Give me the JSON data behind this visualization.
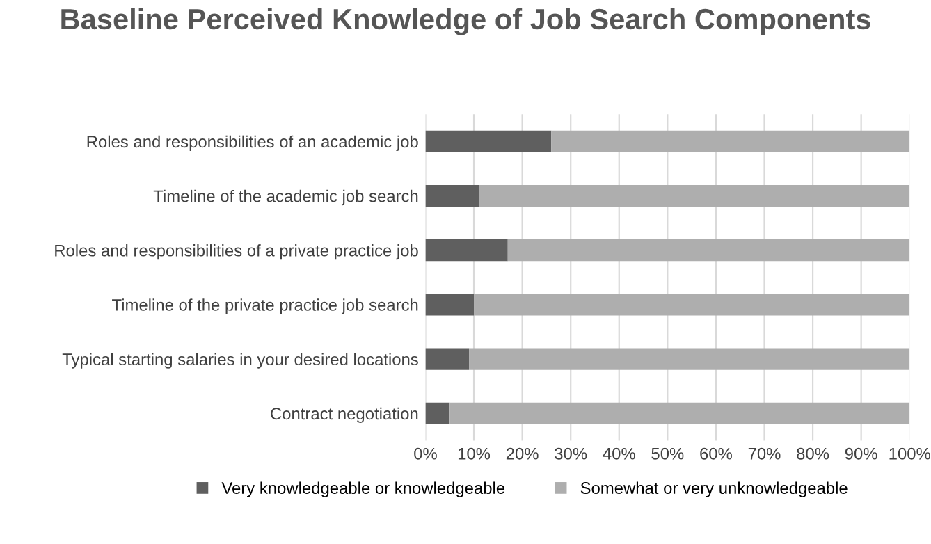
{
  "chart_data": {
    "type": "bar",
    "orientation": "horizontal",
    "stacked": true,
    "title": "Baseline Perceived Knowledge of Job Search Components",
    "categories": [
      "Roles and responsibilities of an academic job",
      "Timeline of the academic job search",
      "Roles and responsibilities of a private practice job",
      "Timeline of the private practice job search",
      "Typical starting salaries in your desired locations",
      "Contract negotiation"
    ],
    "series": [
      {
        "name": "Very knowledgeable or knowledgeable",
        "color": "#5f5f5f",
        "values": [
          26,
          11,
          17,
          10,
          9,
          5
        ]
      },
      {
        "name": "Somewhat or very unknowledgeable",
        "color": "#aeaeae",
        "values": [
          74,
          89,
          83,
          90,
          91,
          95
        ]
      }
    ],
    "xlim": [
      0,
      100
    ],
    "xticks": [
      {
        "value": 0,
        "label": "0%"
      },
      {
        "value": 10,
        "label": "10%"
      },
      {
        "value": 20,
        "label": "20%"
      },
      {
        "value": 30,
        "label": "30%"
      },
      {
        "value": 40,
        "label": "40%"
      },
      {
        "value": 50,
        "label": "50%"
      },
      {
        "value": 60,
        "label": "60%"
      },
      {
        "value": 70,
        "label": "70%"
      },
      {
        "value": 80,
        "label": "80%"
      },
      {
        "value": 90,
        "label": "90%"
      },
      {
        "value": 100,
        "label": "100%"
      }
    ],
    "grid": "x",
    "legend": "bottom"
  }
}
